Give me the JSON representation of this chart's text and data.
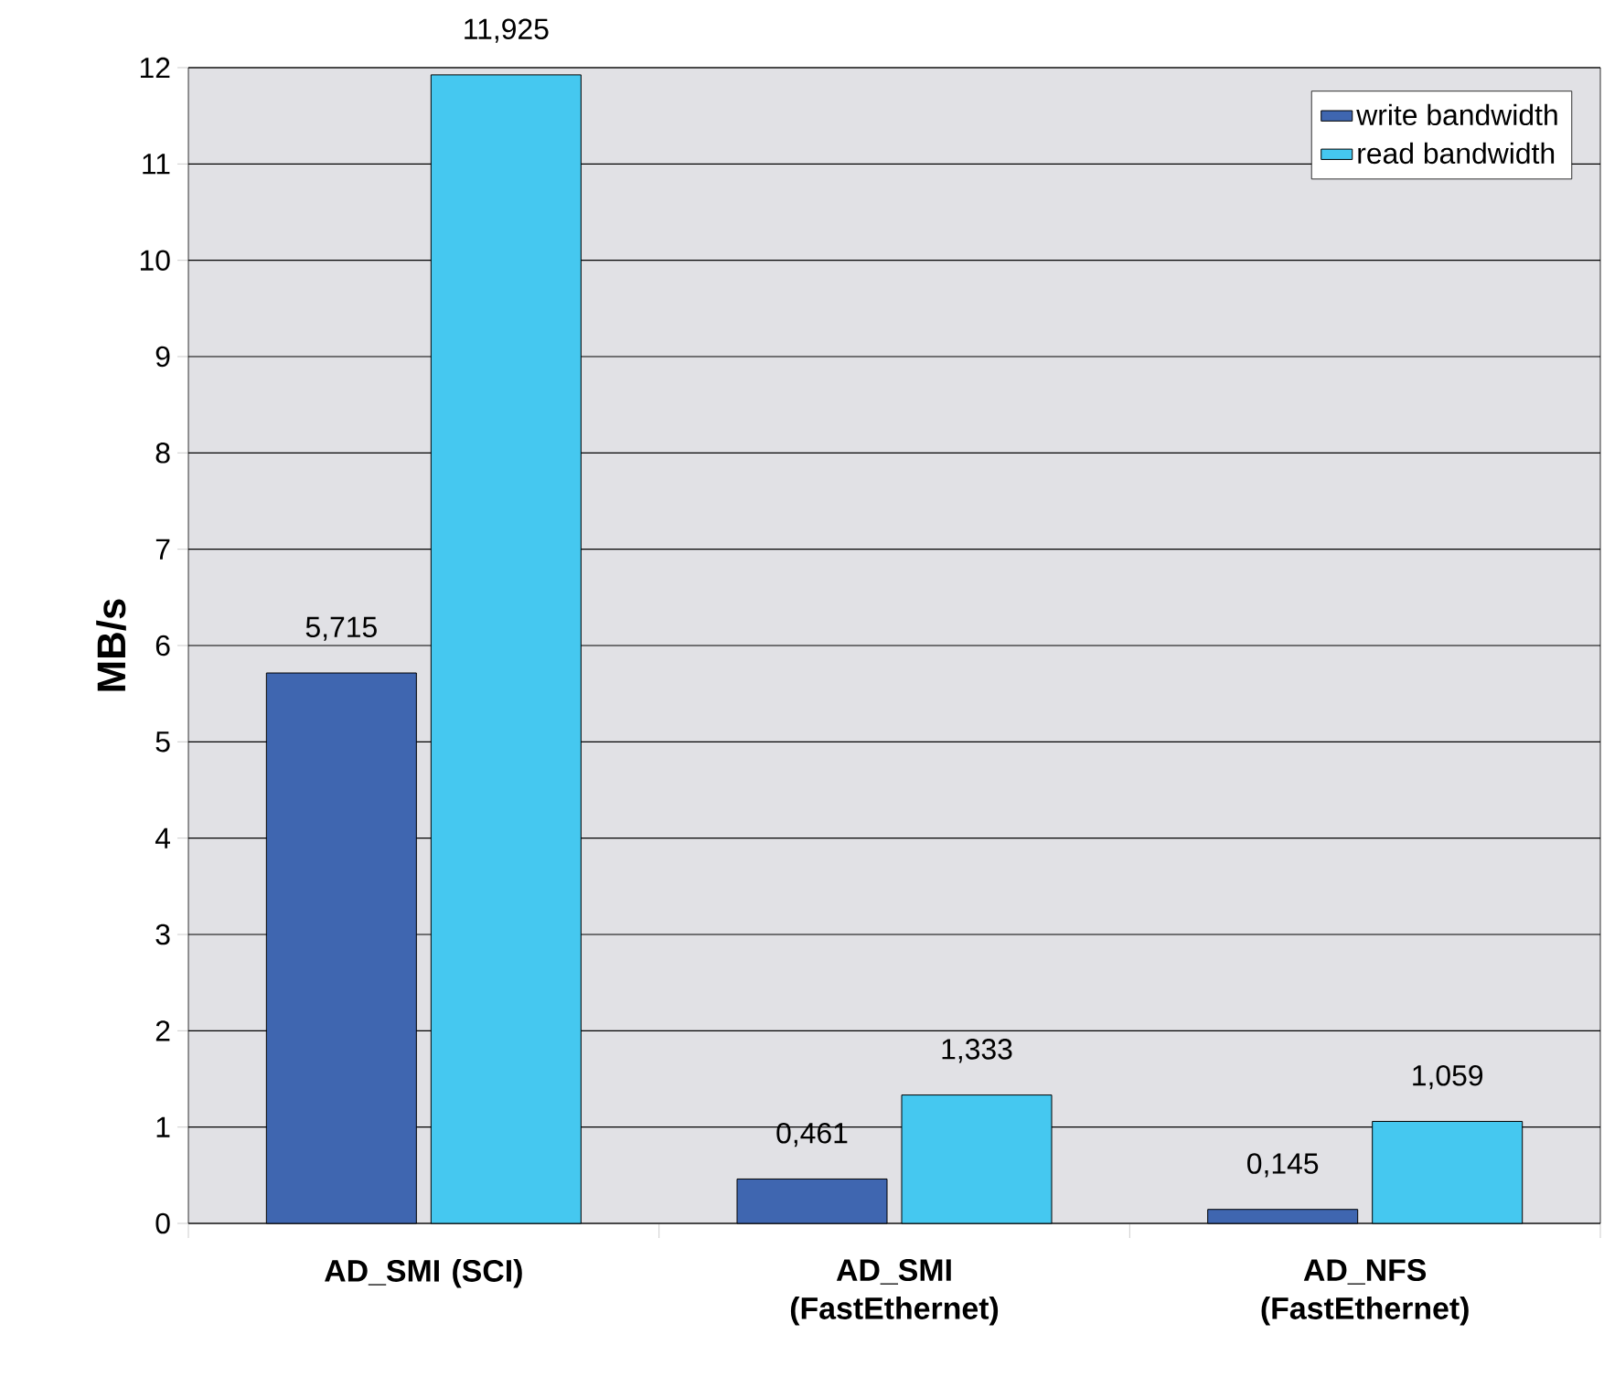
{
  "chart_data": {
    "type": "bar",
    "ylabel": "MB/s",
    "categories": [
      "AD_SMI (SCI)",
      "AD_SMI (FastEthernet)",
      "AD_NFS (FastEthernet)"
    ],
    "series": [
      {
        "name": "write bandwidth",
        "color": "#3f66b0",
        "values": [
          5.715,
          0.461,
          0.145
        ],
        "value_labels": [
          "5,715",
          "0,461",
          "0,145"
        ]
      },
      {
        "name": "read bandwidth",
        "color": "#45c8f0",
        "values": [
          11.925,
          1.333,
          1.059
        ],
        "value_labels": [
          "11,925",
          "1,333",
          "1,059"
        ]
      }
    ],
    "ylim": [
      0,
      12
    ],
    "yticks": [
      0,
      1,
      2,
      3,
      4,
      5,
      6,
      7,
      8,
      9,
      10,
      11,
      12
    ],
    "grid": "y",
    "legend": "top right"
  }
}
